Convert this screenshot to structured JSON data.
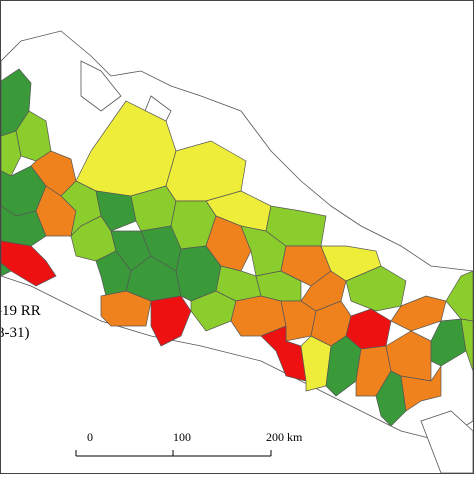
{
  "legend": {
    "title_line1": "-19 RR",
    "title_line2": "8-31)"
  },
  "scale_bar": {
    "labels": [
      "0",
      "100",
      "200 km"
    ]
  },
  "colors": {
    "dark_green": "#3a9a3a",
    "light_green": "#8acd2c",
    "yellow": "#eded3a",
    "orange": "#f0821e",
    "red": "#ee1111",
    "outside": "#ffffff",
    "border": "#555555"
  }
}
